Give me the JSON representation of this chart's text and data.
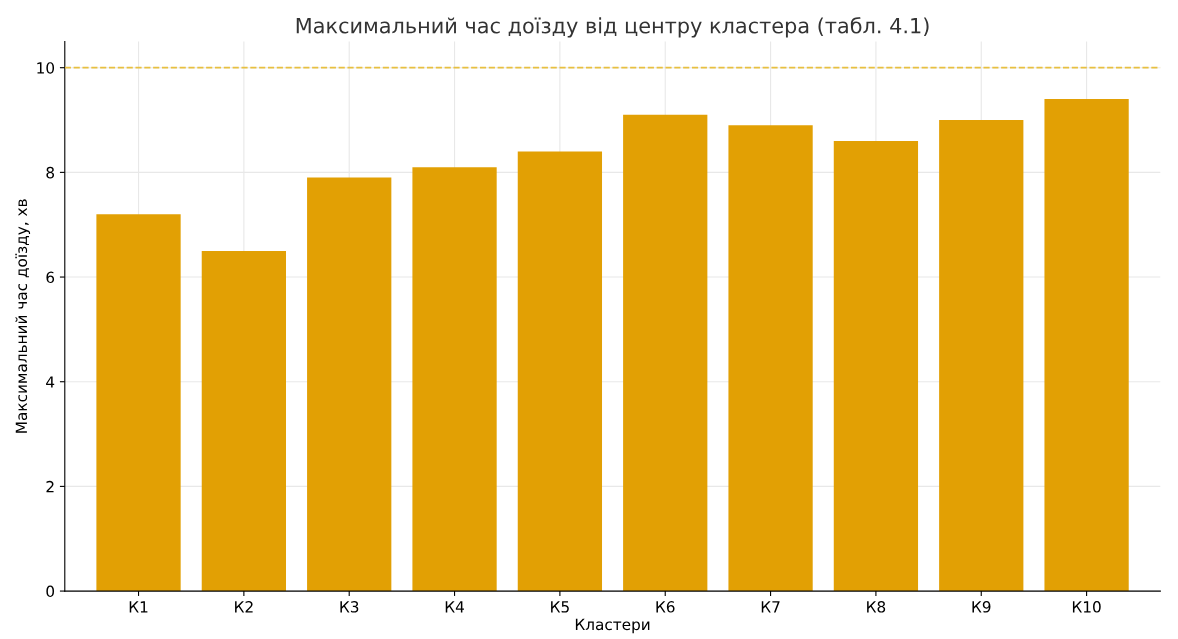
{
  "chart_data": {
    "type": "bar",
    "title": "Максимальний час доїзду від центру кластера (табл. 4.1)",
    "xlabel": "Кластери",
    "ylabel": "Максимальний час доїзду, хв",
    "categories": [
      "К1",
      "К2",
      "К3",
      "К4",
      "К5",
      "К6",
      "К7",
      "К8",
      "К9",
      "К10"
    ],
    "values": [
      7.2,
      6.5,
      7.9,
      8.1,
      8.4,
      9.1,
      8.9,
      8.6,
      9.0,
      9.4
    ],
    "color": "#e2a004",
    "ylim": [
      0,
      10.5
    ],
    "yticks": [
      0,
      2,
      4,
      6,
      8,
      10
    ],
    "grid": true,
    "ref_lines": [
      {
        "axis": "y",
        "value": 10,
        "color": "#e8c040",
        "line_style": "dashed"
      }
    ]
  }
}
